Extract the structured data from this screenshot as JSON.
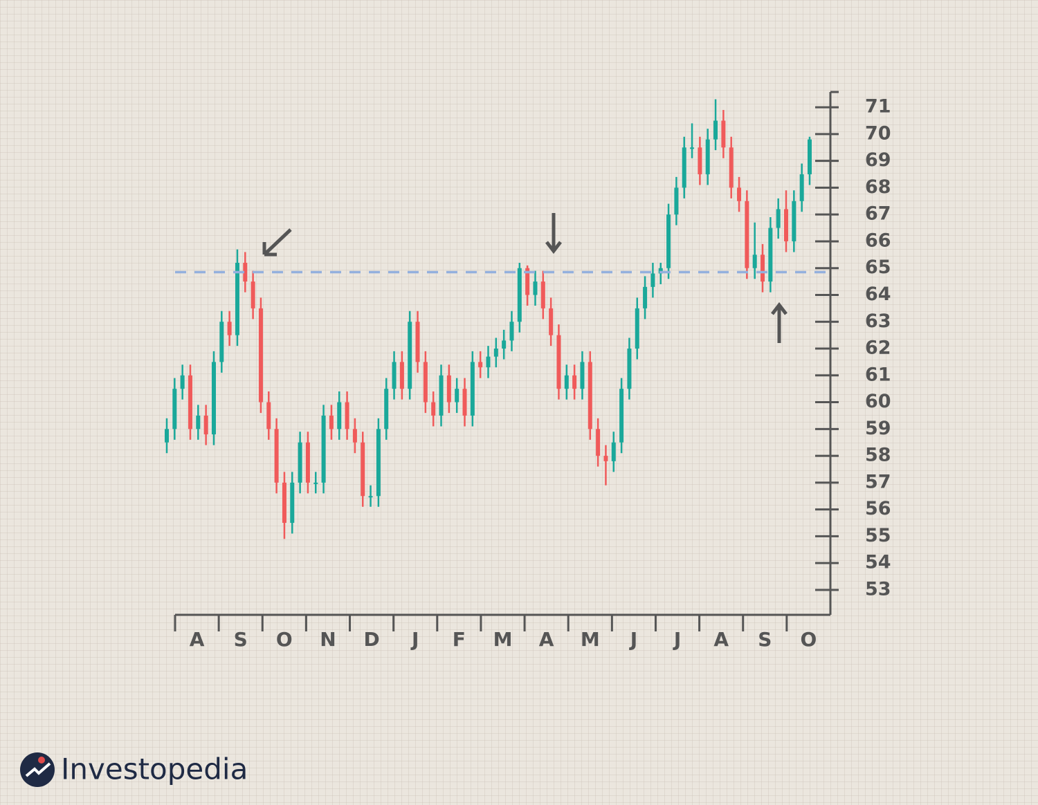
{
  "chart_data": {
    "type": "candlestick",
    "categories": [
      "A",
      "S",
      "O",
      "N",
      "D",
      "J",
      "F",
      "M",
      "A",
      "M",
      "J",
      "J",
      "A",
      "S",
      "O"
    ],
    "open": [
      58.5,
      59,
      60.5,
      61,
      59,
      59.5,
      58.8,
      61.5,
      63,
      62.5,
      65.2,
      64.5,
      63.5,
      60,
      59,
      57,
      55.5,
      57,
      58.5,
      57,
      57,
      59.5,
      59,
      60,
      59,
      58.5,
      56.5,
      56.5,
      59,
      60.5,
      61.5,
      60.5,
      63,
      61.5,
      60,
      59.5,
      61,
      60,
      60.5,
      59.5,
      61.5,
      61.3,
      61.7,
      62,
      62.3,
      63,
      65,
      64,
      64.5,
      63.5,
      62.5,
      60.5,
      61,
      60.5,
      61.5,
      59,
      58,
      57.8,
      58.5,
      60.5,
      62,
      63.5,
      64.3,
      64.8,
      65,
      67,
      68,
      69.5,
      69.5,
      68.5,
      69.8,
      70.5,
      69.5,
      68,
      67.5,
      65,
      65.5,
      64.5,
      66.5,
      67.2,
      66,
      67.5,
      68.5
    ],
    "high": [
      59.4,
      60.9,
      61.4,
      61.4,
      59.9,
      59.9,
      61.9,
      63.4,
      63.4,
      65.7,
      65.6,
      64.9,
      63.9,
      60.4,
      59.4,
      57.4,
      57.4,
      58.9,
      58.9,
      57.4,
      59.9,
      59.9,
      60.4,
      60.4,
      59.4,
      58.9,
      56.9,
      59.4,
      60.9,
      61.9,
      61.9,
      63.4,
      63.4,
      61.9,
      60.4,
      61.4,
      61.4,
      60.9,
      60.9,
      61.9,
      61.9,
      62.1,
      62.4,
      62.7,
      63.4,
      65.2,
      65.1,
      64.9,
      64.9,
      63.9,
      62.9,
      61.4,
      61.4,
      61.9,
      61.9,
      59.4,
      58.4,
      58.9,
      60.9,
      62.4,
      63.9,
      64.7,
      65.2,
      65.2,
      67.4,
      68.4,
      69.9,
      70.4,
      69.9,
      70.2,
      71.3,
      70.9,
      69.9,
      68.4,
      67.9,
      66.7,
      65.9,
      66.9,
      67.6,
      67.9,
      67.9,
      68.9,
      69.9
    ],
    "low": [
      58.1,
      58.6,
      60.1,
      58.6,
      58.6,
      58.4,
      58.4,
      61.1,
      62.1,
      62.1,
      64.1,
      63.1,
      59.6,
      58.6,
      56.6,
      54.9,
      55.1,
      56.6,
      56.6,
      56.6,
      56.6,
      58.6,
      58.6,
      58.6,
      58.1,
      56.1,
      56.1,
      56.1,
      58.6,
      60.1,
      60.1,
      60.1,
      61.1,
      59.6,
      59.1,
      59.1,
      59.6,
      59.6,
      59.1,
      59.1,
      60.9,
      60.9,
      61.3,
      61.6,
      61.9,
      62.6,
      63.6,
      63.6,
      63.1,
      62.1,
      60.1,
      60.1,
      60.1,
      60.1,
      58.6,
      57.6,
      56.9,
      57.4,
      58.1,
      60.1,
      61.6,
      63.1,
      63.9,
      64.4,
      64.6,
      66.6,
      67.6,
      69.1,
      68.1,
      68.1,
      69.4,
      69.1,
      67.6,
      67.1,
      64.6,
      64.6,
      64.1,
      64.1,
      66.1,
      65.6,
      65.6,
      67.1,
      68.1
    ],
    "close": [
      59,
      60.5,
      61,
      59,
      59.5,
      58.8,
      61.5,
      63,
      62.5,
      65.2,
      64.5,
      63.5,
      60,
      59,
      57,
      55.5,
      57,
      58.5,
      57,
      57,
      59.5,
      59,
      60,
      59,
      58.5,
      56.5,
      56.5,
      59,
      60.5,
      61.5,
      60.5,
      63,
      61.5,
      60,
      59.5,
      61,
      60,
      60.5,
      59.5,
      61.5,
      61.3,
      61.7,
      62,
      62.3,
      63,
      65,
      64,
      64.5,
      63.5,
      62.5,
      60.5,
      61,
      60.5,
      61.5,
      59,
      58,
      57.8,
      58.5,
      60.5,
      62,
      63.5,
      64.3,
      64.8,
      65,
      67,
      68,
      69.5,
      69.5,
      68.5,
      69.8,
      70.5,
      69.5,
      68,
      67.5,
      65,
      65.5,
      64.5,
      66.5,
      67.2,
      66,
      67.5,
      68.5,
      69.8
    ],
    "up_color": "#1aa89a",
    "down_color": "#f05a5a",
    "resistance": 64.85,
    "resistance_color": "#93b0dd",
    "ylim": [
      52.07,
      71.57
    ],
    "yticks": [
      53,
      54,
      55,
      56,
      57,
      58,
      59,
      60,
      61,
      62,
      63,
      64,
      65,
      66,
      67,
      68,
      69,
      70,
      71
    ]
  },
  "logo": "Investopedia"
}
